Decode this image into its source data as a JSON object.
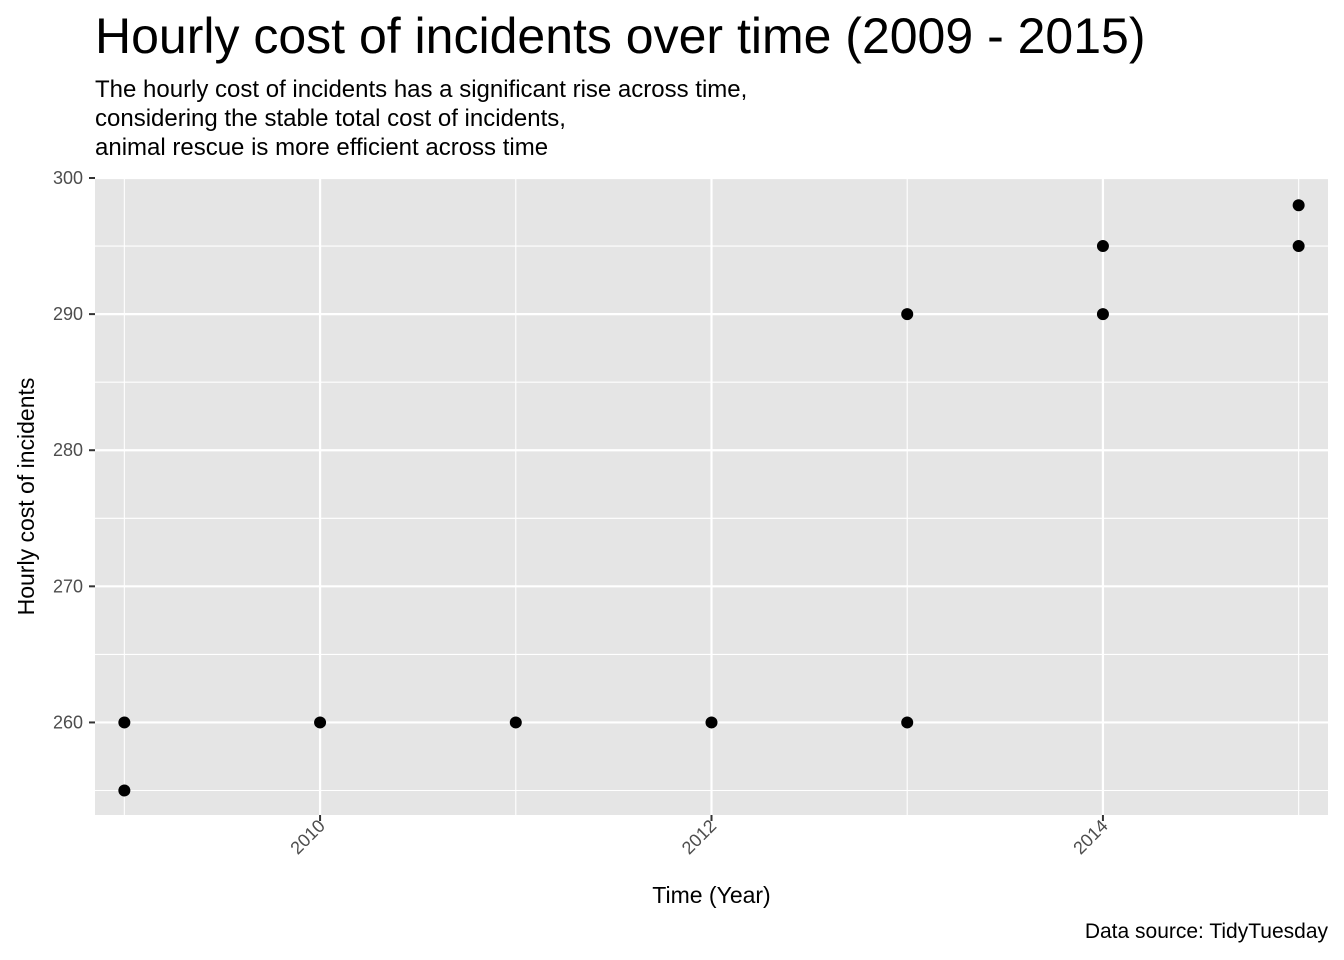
{
  "title": "Hourly cost of incidents over time (2009 - 2015)",
  "subtitle": [
    "The hourly cost of incidents has a significant rise across time,",
    "considering the stable total cost of incidents,",
    "animal rescue is more efficient across time"
  ],
  "caption": "Data source: TidyTuesday",
  "chart_data": {
    "type": "scatter",
    "xlabel": "Time (Year)",
    "ylabel": "Hourly cost of incidents",
    "xlim": [
      2008.85,
      2015.15
    ],
    "ylim": [
      253.2,
      300
    ],
    "x_ticks": [
      2010,
      2012,
      2014
    ],
    "y_ticks": [
      260,
      270,
      280,
      290,
      300
    ],
    "x_tick_rotation": "-45deg",
    "grid": true,
    "colors": {
      "panel": "#e5e5e5",
      "grid": "#ffffff",
      "point": "#000000"
    },
    "points": [
      {
        "x": 2009,
        "y": 260
      },
      {
        "x": 2009,
        "y": 255
      },
      {
        "x": 2010,
        "y": 260
      },
      {
        "x": 2011,
        "y": 260
      },
      {
        "x": 2012,
        "y": 260
      },
      {
        "x": 2013,
        "y": 290
      },
      {
        "x": 2013,
        "y": 260
      },
      {
        "x": 2014,
        "y": 295
      },
      {
        "x": 2014,
        "y": 290
      },
      {
        "x": 2015,
        "y": 298
      },
      {
        "x": 2015,
        "y": 295
      }
    ]
  }
}
